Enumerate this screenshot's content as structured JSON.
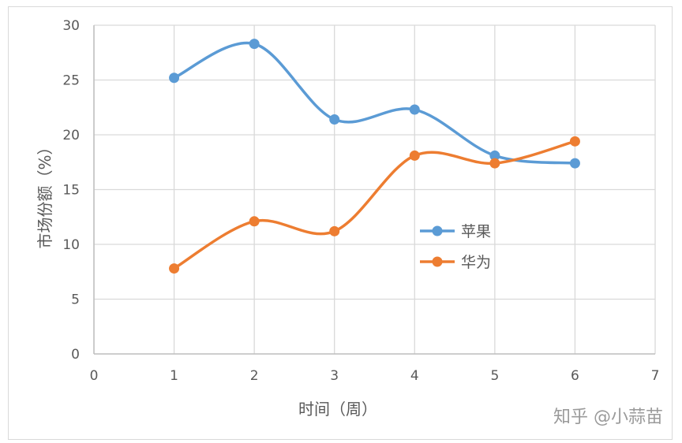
{
  "chart_data": {
    "type": "line",
    "smooth": true,
    "title": "",
    "xlabel": "时间（周）",
    "ylabel": "市场份额（%）",
    "xlim": [
      0,
      7
    ],
    "ylim": [
      0,
      30
    ],
    "x_ticks": [
      "0",
      "1",
      "2",
      "3",
      "4",
      "5",
      "6",
      "7"
    ],
    "y_ticks": [
      "0",
      "5",
      "10",
      "15",
      "20",
      "25",
      "30"
    ],
    "grid": true,
    "legend_position": "center-right",
    "x": [
      1,
      2,
      3,
      4,
      5,
      6
    ],
    "series": [
      {
        "name": "苹果",
        "color": "#5b9bd5",
        "values": [
          25.2,
          28.3,
          21.4,
          22.3,
          18.1,
          17.4
        ]
      },
      {
        "name": "华为",
        "color": "#ed7d31",
        "values": [
          7.8,
          12.1,
          11.2,
          18.1,
          17.4,
          19.4
        ]
      }
    ]
  },
  "watermark": "知乎 @小蒜苗"
}
